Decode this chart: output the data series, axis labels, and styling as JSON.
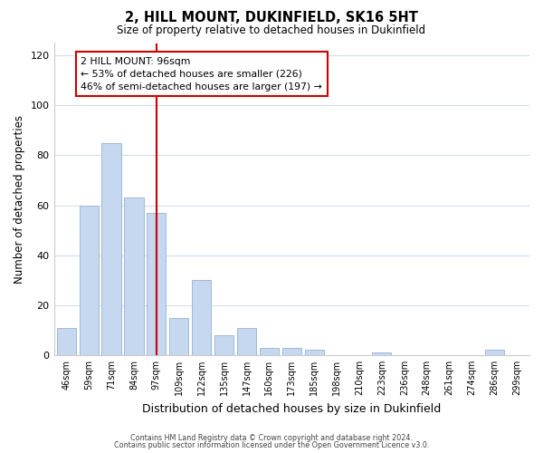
{
  "title": "2, HILL MOUNT, DUKINFIELD, SK16 5HT",
  "subtitle": "Size of property relative to detached houses in Dukinfield",
  "xlabel": "Distribution of detached houses by size in Dukinfield",
  "ylabel": "Number of detached properties",
  "bar_labels": [
    "46sqm",
    "59sqm",
    "71sqm",
    "84sqm",
    "97sqm",
    "109sqm",
    "122sqm",
    "135sqm",
    "147sqm",
    "160sqm",
    "173sqm",
    "185sqm",
    "198sqm",
    "210sqm",
    "223sqm",
    "236sqm",
    "248sqm",
    "261sqm",
    "274sqm",
    "286sqm",
    "299sqm"
  ],
  "bar_values": [
    11,
    60,
    85,
    63,
    57,
    15,
    30,
    8,
    11,
    3,
    3,
    2,
    0,
    0,
    1,
    0,
    0,
    0,
    0,
    2,
    0
  ],
  "bar_color": "#c5d8f0",
  "bar_edge_color": "#a0b8d8",
  "vline_x_index": 4,
  "vline_color": "#cc0000",
  "ylim": [
    0,
    125
  ],
  "yticks": [
    0,
    20,
    40,
    60,
    80,
    100,
    120
  ],
  "annotation_line1": "2 HILL MOUNT: 96sqm",
  "annotation_line2": "← 53% of detached houses are smaller (226)",
  "annotation_line3": "46% of semi-detached houses are larger (197) →",
  "footer_line1": "Contains HM Land Registry data © Crown copyright and database right 2024.",
  "footer_line2": "Contains public sector information licensed under the Open Government Licence v3.0.",
  "background_color": "#ffffff",
  "grid_color": "#d0dcea"
}
